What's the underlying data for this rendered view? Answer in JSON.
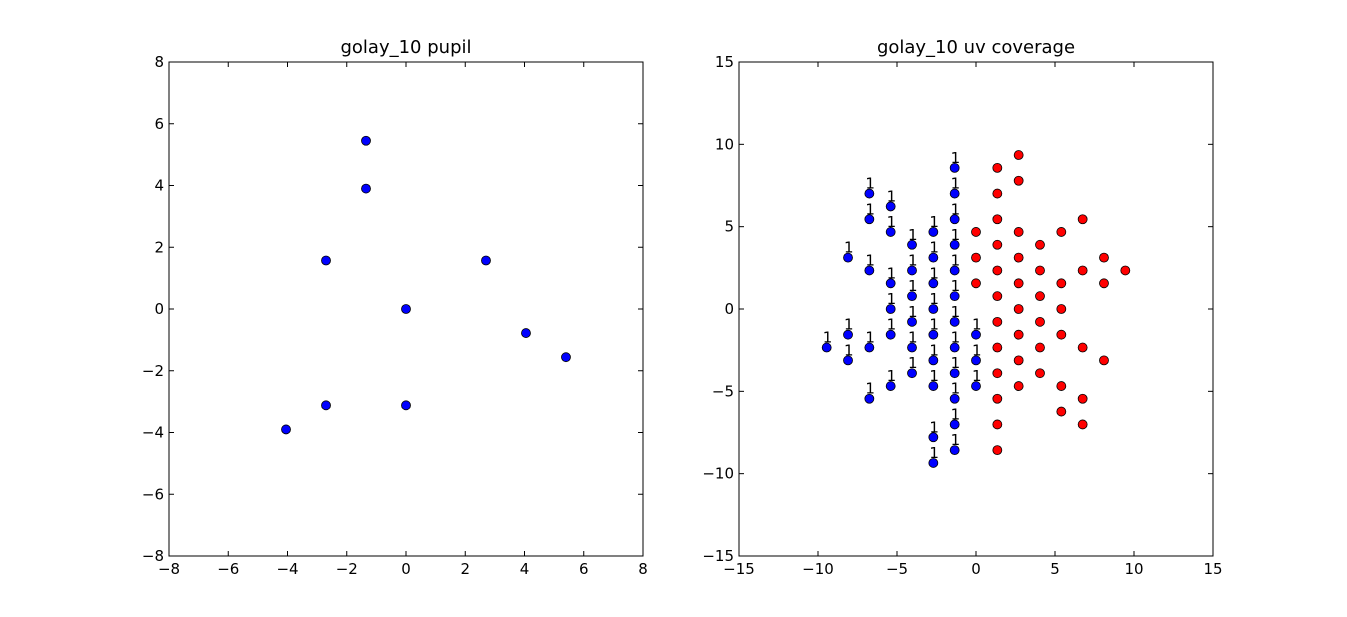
{
  "chart_data": [
    {
      "type": "scatter",
      "title": "golay_10 pupil",
      "xlim": [
        -8,
        8
      ],
      "ylim": [
        -8,
        8
      ],
      "xticks": [
        -8,
        -6,
        -4,
        -2,
        0,
        2,
        4,
        6,
        8
      ],
      "yticks": [
        -8,
        -6,
        -4,
        -2,
        0,
        2,
        4,
        6,
        8
      ],
      "xticklabels": [
        "−8",
        "−6",
        "−4",
        "−2",
        "0",
        "2",
        "4",
        "6",
        "8"
      ],
      "yticklabels": [
        "−8",
        "−6",
        "−4",
        "−2",
        "0",
        "2",
        "4",
        "6",
        "8"
      ],
      "grid": false,
      "series": [
        {
          "color": "#0000ff",
          "points": [
            [
              -1.35,
              5.45
            ],
            [
              -1.35,
              3.9
            ],
            [
              -2.7,
              1.57
            ],
            [
              2.7,
              1.57
            ],
            [
              0,
              0
            ],
            [
              4.05,
              -0.78
            ],
            [
              5.4,
              -1.56
            ],
            [
              -2.7,
              -3.12
            ],
            [
              0,
              -3.12
            ],
            [
              -4.05,
              -3.9
            ]
          ]
        }
      ]
    },
    {
      "type": "scatter",
      "title": "golay_10 uv coverage",
      "xlim": [
        -15,
        15
      ],
      "ylim": [
        -15,
        15
      ],
      "xticks": [
        -15,
        -10,
        -5,
        0,
        5,
        10,
        15
      ],
      "yticks": [
        -15,
        -10,
        -5,
        0,
        5,
        10,
        15
      ],
      "xticklabels": [
        "−15",
        "−10",
        "−5",
        "0",
        "5",
        "10",
        "15"
      ],
      "yticklabels": [
        "−15",
        "−10",
        "−5",
        "0",
        "5",
        "10",
        "15"
      ],
      "grid": false,
      "point_label": "1",
      "series": [
        {
          "color": "#0000ff",
          "labeled": true,
          "points": [
            [
              -1.35,
              8.57
            ],
            [
              -1.35,
              7.01
            ],
            [
              -1.35,
              5.45
            ],
            [
              -1.35,
              3.9
            ],
            [
              -1.35,
              2.34
            ],
            [
              -1.35,
              0.78
            ],
            [
              -1.35,
              -0.78
            ],
            [
              -1.35,
              -2.34
            ],
            [
              -1.35,
              -3.9
            ],
            [
              -1.35,
              -5.45
            ],
            [
              -1.35,
              -7.01
            ],
            [
              -1.35,
              -8.57
            ],
            [
              -2.7,
              4.68
            ],
            [
              -2.7,
              3.12
            ],
            [
              -2.7,
              1.56
            ],
            [
              -2.7,
              0
            ],
            [
              -2.7,
              -1.56
            ],
            [
              -2.7,
              -3.12
            ],
            [
              -2.7,
              -4.68
            ],
            [
              -2.7,
              -7.79
            ],
            [
              -2.7,
              -9.35
            ],
            [
              -4.05,
              3.9
            ],
            [
              -4.05,
              2.34
            ],
            [
              -4.05,
              0.78
            ],
            [
              -4.05,
              -0.78
            ],
            [
              -4.05,
              -2.34
            ],
            [
              -4.05,
              -3.9
            ],
            [
              -5.4,
              6.23
            ],
            [
              -5.4,
              4.68
            ],
            [
              -5.4,
              1.56
            ],
            [
              -5.4,
              0
            ],
            [
              -5.4,
              -1.56
            ],
            [
              -5.4,
              -4.68
            ],
            [
              -6.75,
              7.01
            ],
            [
              -6.75,
              5.45
            ],
            [
              -6.75,
              2.34
            ],
            [
              -6.75,
              -2.34
            ],
            [
              -6.75,
              -5.45
            ],
            [
              -8.1,
              3.12
            ],
            [
              -8.1,
              -1.56
            ],
            [
              -8.1,
              -3.12
            ],
            [
              -9.45,
              -2.34
            ],
            [
              0,
              -1.56
            ],
            [
              0,
              -3.12
            ],
            [
              0,
              -4.68
            ]
          ]
        },
        {
          "color": "#ff0000",
          "labeled": false,
          "points": [
            [
              1.35,
              8.57
            ],
            [
              1.35,
              7.01
            ],
            [
              1.35,
              5.45
            ],
            [
              1.35,
              3.9
            ],
            [
              1.35,
              2.34
            ],
            [
              1.35,
              0.78
            ],
            [
              1.35,
              -0.78
            ],
            [
              1.35,
              -2.34
            ],
            [
              1.35,
              -3.9
            ],
            [
              1.35,
              -5.45
            ],
            [
              1.35,
              -7.01
            ],
            [
              1.35,
              -8.57
            ],
            [
              2.7,
              9.35
            ],
            [
              2.7,
              7.79
            ],
            [
              2.7,
              4.68
            ],
            [
              2.7,
              3.12
            ],
            [
              2.7,
              1.56
            ],
            [
              2.7,
              0
            ],
            [
              2.7,
              -1.56
            ],
            [
              2.7,
              -3.12
            ],
            [
              2.7,
              -4.68
            ],
            [
              4.05,
              3.9
            ],
            [
              4.05,
              2.34
            ],
            [
              4.05,
              0.78
            ],
            [
              4.05,
              -0.78
            ],
            [
              4.05,
              -2.34
            ],
            [
              4.05,
              -3.9
            ],
            [
              5.4,
              4.68
            ],
            [
              5.4,
              1.56
            ],
            [
              5.4,
              0
            ],
            [
              5.4,
              -1.56
            ],
            [
              5.4,
              -4.68
            ],
            [
              5.4,
              -6.23
            ],
            [
              6.75,
              5.45
            ],
            [
              6.75,
              2.34
            ],
            [
              6.75,
              -2.34
            ],
            [
              6.75,
              -5.45
            ],
            [
              6.75,
              -7.01
            ],
            [
              8.1,
              3.12
            ],
            [
              8.1,
              1.56
            ],
            [
              8.1,
              -3.12
            ],
            [
              9.45,
              2.34
            ],
            [
              0,
              4.68
            ],
            [
              0,
              3.12
            ],
            [
              0,
              1.56
            ]
          ]
        }
      ]
    }
  ]
}
